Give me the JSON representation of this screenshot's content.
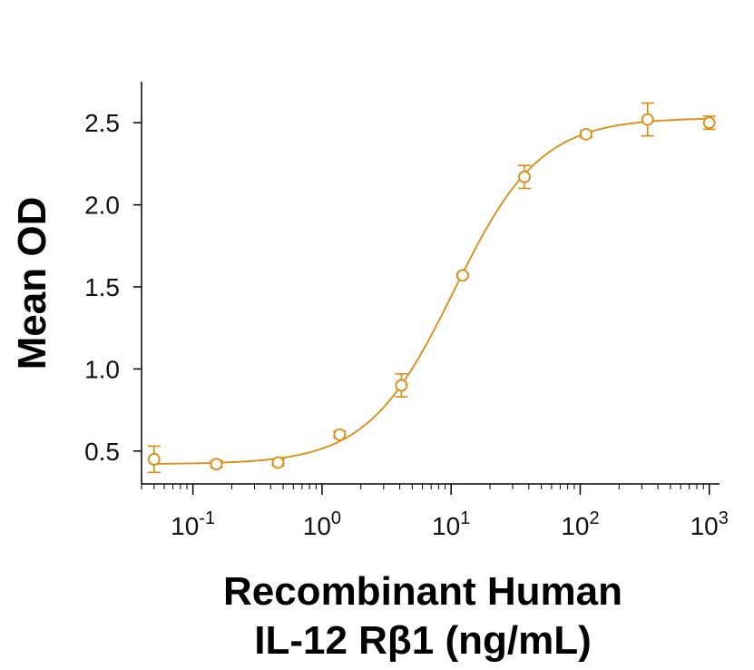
{
  "chart_data": {
    "type": "scatter",
    "title": "",
    "xlabel_lines": [
      "Recombinant Human",
      "IL-12 Rβ1 (ng/mL)"
    ],
    "ylabel": "Mean OD",
    "x_scale": "log",
    "xlim": [
      0.04,
      1200
    ],
    "ylim": [
      0.3,
      2.75
    ],
    "x_ticks": [
      {
        "value": 0.1,
        "base": "10",
        "exp": "-1"
      },
      {
        "value": 1,
        "base": "10",
        "exp": "0"
      },
      {
        "value": 10,
        "base": "10",
        "exp": "1"
      },
      {
        "value": 100,
        "base": "10",
        "exp": "2"
      },
      {
        "value": 1000,
        "base": "10",
        "exp": "3"
      }
    ],
    "y_ticks": [
      {
        "value": 0.5,
        "label": "0.5"
      },
      {
        "value": 1.0,
        "label": "1.0"
      },
      {
        "value": 1.5,
        "label": "1.5"
      },
      {
        "value": 2.0,
        "label": "2.0"
      },
      {
        "value": 2.5,
        "label": "2.5"
      }
    ],
    "series": [
      {
        "color": "#E08A0B",
        "points": [
          {
            "x": 0.05,
            "y": 0.45,
            "err": 0.08
          },
          {
            "x": 0.152,
            "y": 0.42,
            "err": 0.02
          },
          {
            "x": 0.457,
            "y": 0.43,
            "err": 0.02
          },
          {
            "x": 1.37,
            "y": 0.6,
            "err": 0.02
          },
          {
            "x": 4.12,
            "y": 0.9,
            "err": 0.07
          },
          {
            "x": 12.3,
            "y": 1.57,
            "err": 0.01
          },
          {
            "x": 37.0,
            "y": 2.17,
            "err": 0.07
          },
          {
            "x": 111,
            "y": 2.43,
            "err": 0.02
          },
          {
            "x": 333,
            "y": 2.52,
            "err": 0.1
          },
          {
            "x": 1000,
            "y": 2.5,
            "err": 0.04
          }
        ],
        "fit": {
          "model": "4PL",
          "bottom": 0.42,
          "top": 2.53,
          "ec50": 10.5,
          "hill": 1.3
        }
      }
    ],
    "grid": false,
    "legend": "none"
  }
}
